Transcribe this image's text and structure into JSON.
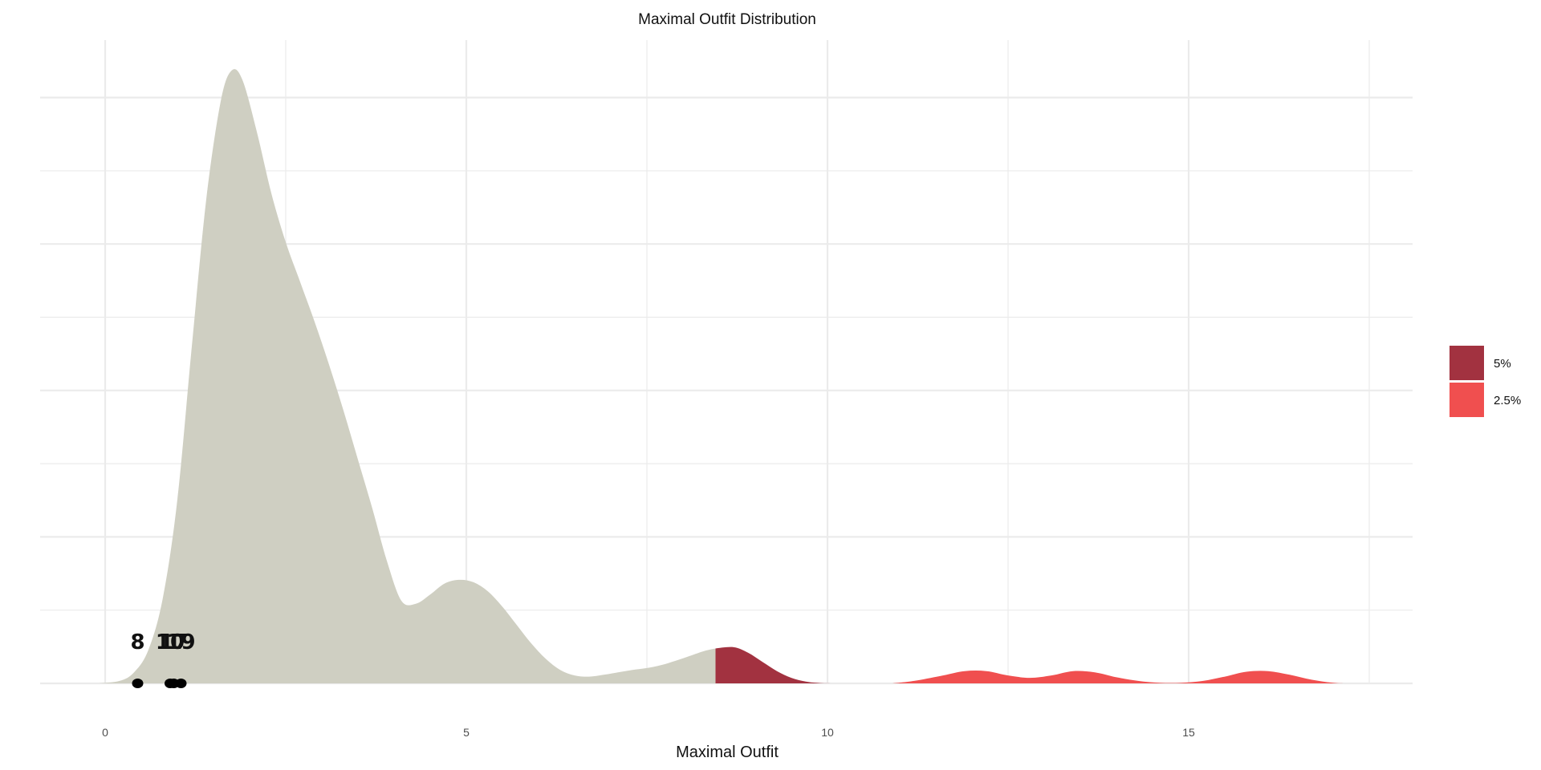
{
  "chart_data": {
    "type": "area",
    "title": "Maximal Outfit Distribution",
    "xlabel": "Maximal Outfit",
    "ylabel": "",
    "xlim": [
      -0.9,
      18.1
    ],
    "ylim": [
      0,
      1.0
    ],
    "x_ticks": [
      0,
      5,
      10,
      15
    ],
    "x_tick_labels": [
      "0",
      "5",
      "10",
      "15"
    ],
    "grid": true,
    "legend_position": "right",
    "colors": {
      "density_fill": "#cfcfc2",
      "tail_5": "#a23240",
      "tail_2_5": "#f04f4f",
      "grid": "#ebebeb"
    },
    "legend": [
      {
        "label": "5%",
        "color": "#a23240"
      },
      {
        "label": "2.5%",
        "color": "#f04f4f"
      }
    ],
    "density": [
      [
        -0.1,
        0.0
      ],
      [
        0.2,
        0.004
      ],
      [
        0.4,
        0.018
      ],
      [
        0.6,
        0.055
      ],
      [
        0.8,
        0.14
      ],
      [
        1.0,
        0.3
      ],
      [
        1.2,
        0.55
      ],
      [
        1.4,
        0.79
      ],
      [
        1.6,
        0.95
      ],
      [
        1.75,
        1.0
      ],
      [
        1.9,
        0.985
      ],
      [
        2.1,
        0.9
      ],
      [
        2.3,
        0.8
      ],
      [
        2.5,
        0.72
      ],
      [
        2.7,
        0.655
      ],
      [
        2.9,
        0.59
      ],
      [
        3.1,
        0.52
      ],
      [
        3.3,
        0.445
      ],
      [
        3.5,
        0.365
      ],
      [
        3.7,
        0.285
      ],
      [
        3.9,
        0.2
      ],
      [
        4.1,
        0.135
      ],
      [
        4.3,
        0.13
      ],
      [
        4.5,
        0.145
      ],
      [
        4.7,
        0.163
      ],
      [
        4.9,
        0.169
      ],
      [
        5.1,
        0.165
      ],
      [
        5.3,
        0.15
      ],
      [
        5.5,
        0.125
      ],
      [
        5.7,
        0.095
      ],
      [
        5.9,
        0.065
      ],
      [
        6.1,
        0.04
      ],
      [
        6.3,
        0.022
      ],
      [
        6.5,
        0.013
      ],
      [
        6.7,
        0.011
      ],
      [
        6.9,
        0.014
      ],
      [
        7.1,
        0.018
      ],
      [
        7.3,
        0.022
      ],
      [
        7.5,
        0.025
      ],
      [
        7.7,
        0.03
      ],
      [
        7.9,
        0.037
      ],
      [
        8.1,
        0.045
      ],
      [
        8.3,
        0.053
      ],
      [
        8.45,
        0.057
      ]
    ],
    "tail_5_density": [
      [
        8.45,
        0.057
      ],
      [
        8.7,
        0.059
      ],
      [
        8.9,
        0.05
      ],
      [
        9.1,
        0.035
      ],
      [
        9.3,
        0.02
      ],
      [
        9.5,
        0.009
      ],
      [
        9.7,
        0.003
      ],
      [
        9.9,
        0.0005
      ],
      [
        10.1,
        0.0
      ]
    ],
    "tail_2_5_density": [
      [
        10.9,
        0.0
      ],
      [
        11.2,
        0.004
      ],
      [
        11.6,
        0.013
      ],
      [
        11.9,
        0.02
      ],
      [
        12.2,
        0.02
      ],
      [
        12.5,
        0.013
      ],
      [
        12.8,
        0.009
      ],
      [
        13.1,
        0.013
      ],
      [
        13.4,
        0.02
      ],
      [
        13.7,
        0.018
      ],
      [
        14.0,
        0.01
      ],
      [
        14.3,
        0.004
      ],
      [
        14.6,
        0.001
      ],
      [
        14.9,
        0.001
      ],
      [
        15.2,
        0.004
      ],
      [
        15.5,
        0.011
      ],
      [
        15.8,
        0.019
      ],
      [
        16.1,
        0.02
      ],
      [
        16.4,
        0.014
      ],
      [
        16.7,
        0.006
      ],
      [
        17.0,
        0.001
      ],
      [
        17.2,
        0.0
      ]
    ],
    "points": [
      {
        "x": 0.45,
        "label": "8"
      },
      {
        "x": 0.9,
        "label": "10"
      },
      {
        "x": 0.95,
        "label": "17"
      },
      {
        "x": 1.05,
        "label": "19"
      }
    ]
  }
}
